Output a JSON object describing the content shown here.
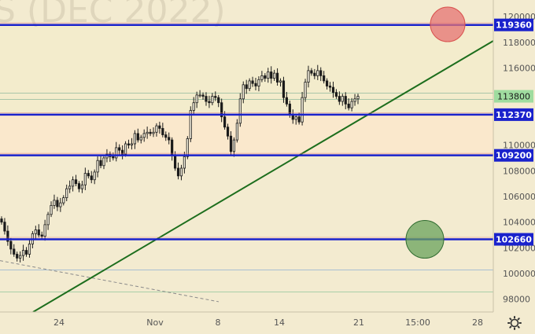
{
  "chart_data": {
    "type": "candlestick",
    "watermark": "S (DEC 2022)",
    "x_tick_labels": [
      "24",
      "Nov",
      "8",
      "14",
      "21",
      "15:00",
      "28"
    ],
    "y_tick_labels": [
      "120000",
      "118000",
      "116000",
      "110000",
      "108000",
      "106000",
      "104000",
      "102000",
      "100000",
      "98000"
    ],
    "ylim": [
      97000,
      121300
    ],
    "levels": [
      {
        "label": "119360",
        "value": 119360,
        "color": "#1a22cc"
      },
      {
        "label": "112370",
        "value": 112370,
        "color": "#1a22cc"
      },
      {
        "label": "109200",
        "value": 109200,
        "color": "#1a22cc"
      },
      {
        "label": "102660",
        "value": 102660,
        "color": "#1a22cc"
      }
    ],
    "current_price": {
      "label": "113800",
      "value": 113800
    },
    "faint_levels": [
      {
        "value": 114050,
        "color": "#a9c6a8"
      },
      {
        "value": 113600,
        "color": "#a9c6a8"
      },
      {
        "value": 100300,
        "color": "#a8bfd2"
      },
      {
        "value": 98600,
        "color": "#a9cfa8"
      }
    ],
    "zones": [
      {
        "from": 112370,
        "to": 119360,
        "color": "#f3eccc"
      },
      {
        "from": 109200,
        "to": 112370,
        "color": "#fae8cc"
      }
    ],
    "trendline": {
      "color": "#1d6e1d",
      "points": [
        [
          "start",
          97200
        ],
        [
          "end",
          117800
        ]
      ]
    },
    "dashed_line": {
      "color": "#8a8a8a",
      "points": [
        [
          101000,
          101000
        ],
        [
          97800,
          97800
        ]
      ]
    },
    "markers": [
      {
        "kind": "target",
        "color": "#e57373",
        "value": 119400
      },
      {
        "kind": "target",
        "color": "#6aa35c",
        "value": 102660
      }
    ],
    "candles_close": [
      104000,
      103300,
      102500,
      101900,
      101500,
      101200,
      101400,
      101800,
      101500,
      102300,
      103100,
      103400,
      103000,
      102900,
      103800,
      104600,
      105300,
      105700,
      105200,
      105500,
      105900,
      106600,
      106800,
      107300,
      107000,
      106600,
      106900,
      107800,
      107600,
      107300,
      107900,
      108800,
      108400,
      109000,
      109300,
      109100,
      109000,
      109800,
      109600,
      109300,
      110100,
      110000,
      110100,
      110900,
      110400,
      110600,
      110900,
      111000,
      110900,
      111000,
      111500,
      111300,
      110800,
      110600,
      110400,
      109200,
      108200,
      107600,
      108200,
      109100,
      110500,
      112700,
      113300,
      113900,
      113900,
      113800,
      113400,
      113300,
      113800,
      113700,
      113300,
      112200,
      111400,
      110700,
      109500,
      110400,
      111700,
      113600,
      114700,
      114400,
      115000,
      114800,
      114600,
      115100,
      115400,
      115200,
      115700,
      115200,
      115600,
      114900,
      115000,
      113700,
      113200,
      112400,
      112000,
      112200,
      111800,
      113700,
      114900,
      115800,
      115600,
      115400,
      115800,
      115400,
      115000,
      114600,
      114500,
      114100,
      113800,
      113400,
      113800,
      113200,
      112900,
      113400,
      113600,
      113800
    ]
  }
}
